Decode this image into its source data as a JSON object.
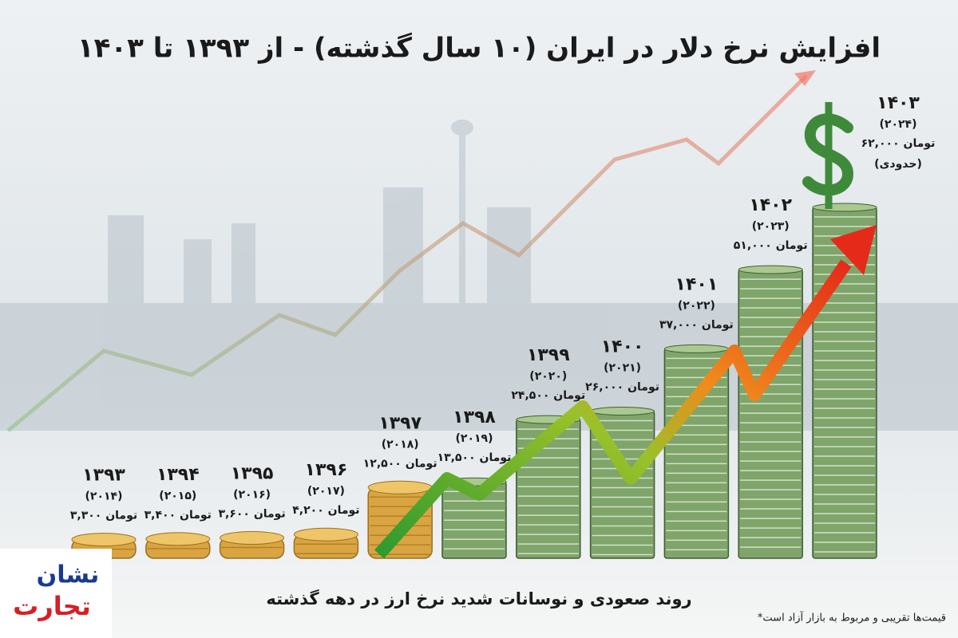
{
  "chart_data": {
    "type": "bar",
    "title": "افزایش نرخ دلار در ایران (۱۰ سال گذشته) - از ۱۳۹۳ تا ۱۴۰۳",
    "subtitle": "روند صعودی و نوسانات شدید نرخ ارز در دهه گذشته",
    "footnote": "*قیمت‌ها تقریبی و مربوط به بازار آزاد است",
    "categories": [
      "۱۳۹۳",
      "۱۳۹۴",
      "۱۳۹۵",
      "۱۳۹۶",
      "۱۳۹۷",
      "۱۳۹۸",
      "۱۳۹۹",
      "۱۴۰۰",
      "۱۴۰۱",
      "۱۴۰۲",
      "۱۴۰۳"
    ],
    "gregorian_labels": [
      "(۲۰۱۴)",
      "(۲۰۱۵)",
      "(۲۰۱۶)",
      "(۲۰۱۷)",
      "(۲۰۱۸)",
      "(۲۰۱۹)",
      "(۲۰۲۰)",
      "(۲۰۲۱)",
      "(۲۰۲۲)",
      "(۲۰۲۳)",
      "(۲۰۲۴)"
    ],
    "values": [
      3300,
      3400,
      3600,
      4200,
      12500,
      13500,
      24500,
      26000,
      37000,
      51000,
      62000
    ],
    "value_labels": [
      "۳,۳۰۰ تومان",
      "۳,۴۰۰ تومان",
      "۳,۶۰۰ تومان",
      "۴,۲۰۰ تومان",
      "۱۲,۵۰۰ تومان",
      "۱۳,۵۰۰ تومان",
      "۲۴,۵۰۰ تومان",
      "۲۶,۰۰۰ تومان",
      "۳۷,۰۰۰ تومان",
      "۵۱,۰۰۰ تومان",
      "۶۲,۰۰۰ تومان"
    ],
    "annotation": "(حدودی)",
    "coin_color": "#d9a441",
    "cash_color": "#7fa56a"
  },
  "logo": {
    "line1": "نشان",
    "line2": "تجارت"
  }
}
